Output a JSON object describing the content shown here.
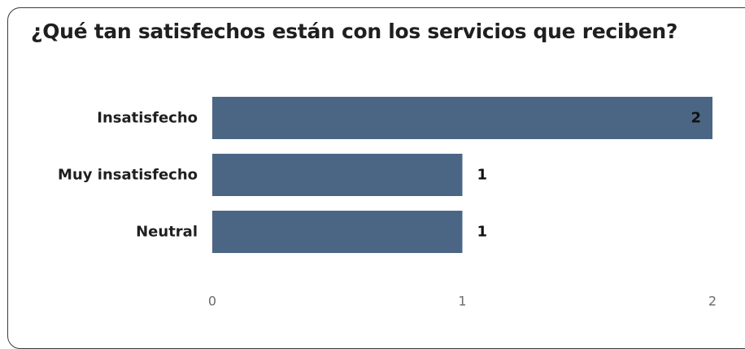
{
  "chart_data": {
    "type": "bar",
    "orientation": "horizontal",
    "title": "¿Qué tan satisfechos están con los servicios que reciben?",
    "categories": [
      "Insatisfecho",
      "Muy insatisfecho",
      "Neutral"
    ],
    "values": [
      2,
      1,
      1
    ],
    "data_labels": [
      "2",
      "1",
      "1"
    ],
    "xlim": [
      0,
      2
    ],
    "x_ticks": [
      "0",
      "1",
      "2"
    ],
    "bar_color": "#4a6684",
    "grid": false,
    "legend": "none"
  }
}
